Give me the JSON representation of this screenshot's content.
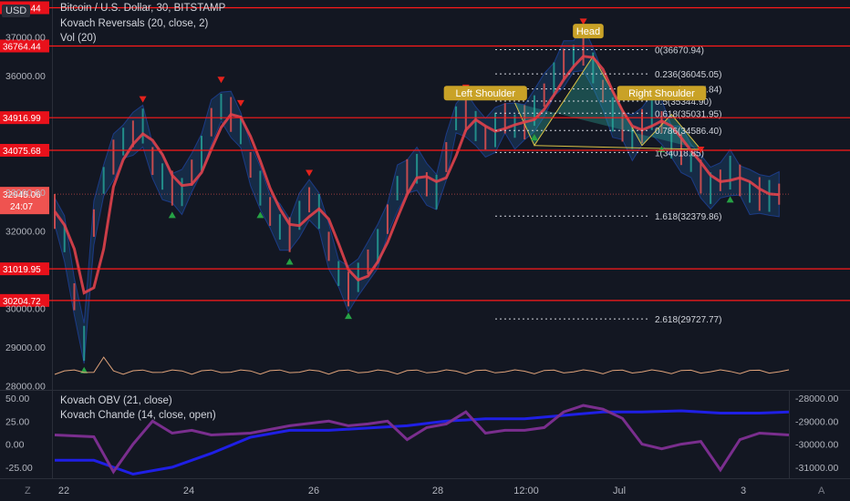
{
  "header": {
    "symbol_line": "Bitcoin / U.S. Dollar, 30, BITSTAMP",
    "indicator_1": "Kovach Reversals (20, close, 2)",
    "indicator_2": "Vol (20)",
    "currency_button": "USD"
  },
  "oscillator_legend": {
    "line_1": "Kovach OBV (21, close)",
    "line_2": "Kovach Chande (14, close, open)"
  },
  "colors": {
    "background": "#131722",
    "level_line": "#ff1a1a",
    "price_tag": "#e8111b",
    "band_fill": "#1e4f8a",
    "moving_average": "#e0414b",
    "pattern_fill": "#2fae9e",
    "pattern_line": "#d9c145",
    "pattern_label_bg": "#c9a227",
    "fib_line": "#d1d4dc",
    "up_marker": "#26a245",
    "down_marker": "#e5221c",
    "volume_line": "#e0a37a",
    "obv_line": "#1f1fe5",
    "chande_line": "#7a2e8e"
  },
  "chart_data": [
    {
      "type": "line",
      "title": "Bitcoin / U.S. Dollar, 30, BITSTAMP",
      "y_axis_ticks": [
        "37000.00",
        "36000.00",
        "33000.00",
        "32000.00",
        "30000.00",
        "29000.00",
        "28000.00"
      ],
      "ylim": [
        27900,
        37950
      ],
      "x_axis_ticks": [
        "22",
        "24",
        "26",
        "28",
        "12:00",
        "Jul",
        "3"
      ],
      "horizontal_levels": [
        {
          "value": 37750.44,
          "label": "37750.44"
        },
        {
          "value": 36764.44,
          "label": "36764.44"
        },
        {
          "value": 34916.99,
          "label": "34916.99"
        },
        {
          "value": 34075.68,
          "label": "34075.68"
        },
        {
          "value": 31019.95,
          "label": "31019.95"
        },
        {
          "value": 30204.72,
          "label": "30204.72"
        }
      ],
      "last_price": {
        "value": 32945.06,
        "label": "32945.06",
        "countdown": "24:07"
      },
      "price_series": {
        "name": "close",
        "x": [
          0,
          1,
          2,
          3,
          4,
          5,
          6,
          7,
          8,
          9,
          10,
          11,
          12,
          13,
          14,
          15,
          16,
          17,
          18,
          19,
          20,
          21,
          22,
          23,
          24,
          25,
          26,
          27,
          28,
          29,
          30,
          31,
          32,
          33,
          34,
          35,
          36,
          37,
          38,
          39,
          40,
          41,
          42,
          43,
          44,
          45,
          46,
          47,
          48,
          49,
          50,
          51,
          52,
          53,
          54,
          55,
          56,
          57,
          58,
          59,
          60,
          61,
          62,
          63,
          64,
          65,
          66,
          67,
          68,
          69,
          70,
          71,
          72,
          73,
          74
        ],
        "y": [
          32500,
          31800,
          30300,
          29100,
          32200,
          33300,
          33900,
          34300,
          34500,
          34700,
          33800,
          33400,
          33100,
          33000,
          33500,
          34000,
          34800,
          35200,
          35000,
          34600,
          33700,
          33100,
          32500,
          32100,
          31900,
          32400,
          32800,
          32500,
          31600,
          30900,
          30500,
          30800,
          31200,
          31600,
          32300,
          33100,
          33400,
          33600,
          33200,
          33000,
          33900,
          34900,
          35000,
          34700,
          34400,
          34600,
          34900,
          34700,
          34800,
          35100,
          35500,
          35900,
          36300,
          36500,
          36700,
          36200,
          35600,
          35000,
          34700,
          34400,
          34700,
          35000,
          34800,
          34300,
          34100,
          33800,
          33400,
          33100,
          33300,
          33500,
          33300,
          33000,
          32950,
          32900,
          32945
        ]
      },
      "fibonacci_levels": [
        {
          "ratio": "0",
          "value": 36670.94,
          "label": "0(36670.94)"
        },
        {
          "ratio": "0.236",
          "value": 36045.05,
          "label": "0.236(36045.05)"
        },
        {
          "ratio": "0.382",
          "value": 35657.84,
          "label": "0.382(35657.84)"
        },
        {
          "ratio": "0.5",
          "value": 35344.9,
          "label": "0.5(35344.90)"
        },
        {
          "ratio": "0.618",
          "value": 35031.95,
          "label": "0.618(35031.95)"
        },
        {
          "ratio": "0.786",
          "value": 34586.4,
          "label": "0.786(34586.40)"
        },
        {
          "ratio": "1",
          "value": 34018.85,
          "label": "1(34018.85)"
        },
        {
          "ratio": "1.618",
          "value": 32379.86,
          "label": "1.618(32379.86)"
        },
        {
          "ratio": "2.618",
          "value": 29727.77,
          "label": "2.618(29727.77)"
        }
      ],
      "pattern_labels": [
        "Left Shoulder",
        "Head",
        "Right Shoulder"
      ],
      "pattern_points": [
        {
          "x": 47,
          "y": 35300
        },
        {
          "x": 49,
          "y": 34200
        },
        {
          "x": 55,
          "y": 36500
        },
        {
          "x": 60,
          "y": 34200
        },
        {
          "x": 63,
          "y": 35000
        },
        {
          "x": 66,
          "y": 34100
        }
      ]
    },
    {
      "type": "line",
      "title": "Kovach OBV (21, close) / Kovach Chande (14, close, open)",
      "left_axis_ticks": [
        "50.00",
        "25.00",
        "0.00",
        "-25.00"
      ],
      "left_ylim": [
        -35,
        55
      ],
      "right_axis_ticks": [
        "-28000.00",
        "-29000.00",
        "-30000.00",
        "-31000.00"
      ],
      "right_ylim": [
        -31400,
        -27800
      ],
      "series": [
        {
          "name": "Kovach OBV",
          "axis": "right",
          "x": [
            0,
            4,
            8,
            12,
            16,
            20,
            24,
            28,
            32,
            36,
            40,
            44,
            48,
            52,
            56,
            60,
            64,
            68,
            72,
            75
          ],
          "y": [
            -30700,
            -30700,
            -31300,
            -31000,
            -30400,
            -29700,
            -29400,
            -29400,
            -29300,
            -29200,
            -29000,
            -28900,
            -28900,
            -28750,
            -28600,
            -28600,
            -28550,
            -28650,
            -28650,
            -28600
          ]
        },
        {
          "name": "Kovach Chande",
          "axis": "left",
          "x": [
            0,
            4,
            6,
            8,
            10,
            12,
            14,
            16,
            20,
            24,
            28,
            30,
            32,
            34,
            36,
            38,
            40,
            42,
            44,
            46,
            48,
            50,
            52,
            54,
            56,
            58,
            60,
            62,
            64,
            66,
            68,
            70,
            72,
            75
          ],
          "y": [
            10,
            8,
            -30,
            0,
            25,
            12,
            15,
            10,
            12,
            20,
            25,
            20,
            22,
            25,
            5,
            18,
            22,
            35,
            12,
            15,
            15,
            18,
            35,
            42,
            38,
            28,
            0,
            -5,
            0,
            3,
            -28,
            5,
            12,
            10
          ]
        }
      ]
    }
  ]
}
